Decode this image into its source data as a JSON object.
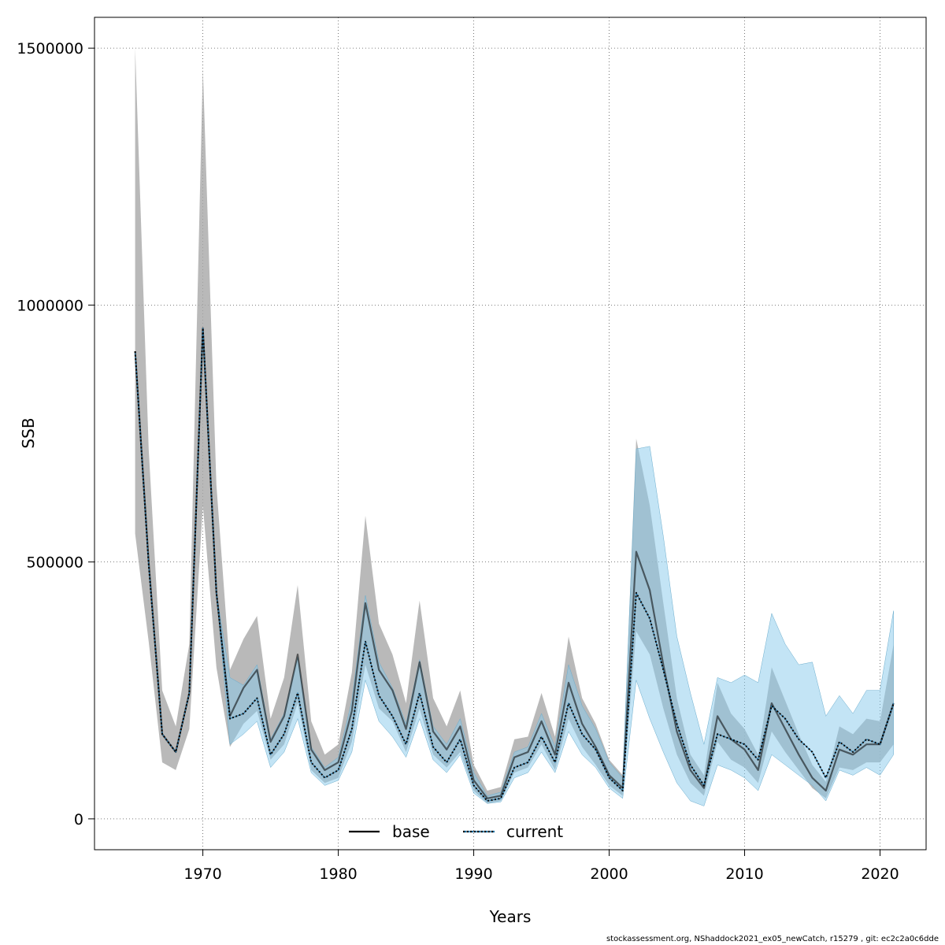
{
  "chart_data": {
    "type": "line",
    "title": "",
    "xlabel": "Years",
    "ylabel": "SSB",
    "xlim": [
      1962,
      2023.4
    ],
    "ylim": [
      -60000,
      1560000
    ],
    "x_ticks": [
      1970,
      1980,
      1990,
      2000,
      2010,
      2020
    ],
    "x_tick_labels": [
      "1970",
      "1980",
      "1990",
      "2000",
      "2010",
      "2020"
    ],
    "y_ticks": [
      0,
      500000,
      1000000,
      1500000
    ],
    "y_tick_labels": [
      "0",
      "500000",
      "1000000",
      "1500000"
    ],
    "grid": true,
    "legend": {
      "position": "bottom-center",
      "entries": [
        "base",
        "current"
      ]
    },
    "x": [
      1965,
      1966,
      1967,
      1968,
      1969,
      1970,
      1971,
      1972,
      1973,
      1974,
      1975,
      1976,
      1977,
      1978,
      1979,
      1980,
      1981,
      1982,
      1983,
      1984,
      1985,
      1986,
      1987,
      1988,
      1989,
      1990,
      1991,
      1992,
      1993,
      1994,
      1995,
      1996,
      1997,
      1998,
      1999,
      2000,
      2001,
      2002,
      2003,
      2004,
      2005,
      2006,
      2007,
      2008,
      2009,
      2010,
      2011,
      2012,
      2013,
      2014,
      2015,
      2016,
      2017,
      2018,
      2019,
      2020,
      2021
    ],
    "series": [
      {
        "name": "base",
        "line_style": "solid",
        "color": "#000000",
        "band_color": "#a8a8a8",
        "values": [
          910000,
          500000,
          165000,
          130000,
          245000,
          955000,
          440000,
          200000,
          255000,
          290000,
          150000,
          200000,
          320000,
          135000,
          95000,
          110000,
          210000,
          420000,
          290000,
          250000,
          175000,
          305000,
          170000,
          135000,
          180000,
          75000,
          40000,
          45000,
          120000,
          130000,
          190000,
          125000,
          265000,
          185000,
          140000,
          85000,
          60000,
          520000,
          445000,
          300000,
          170000,
          95000,
          60000,
          200000,
          155000,
          135000,
          95000,
          225000,
          175000,
          125000,
          80000,
          55000,
          135000,
          125000,
          145000,
          145000,
          225000
        ],
        "upper": [
          1500000,
          720000,
          250000,
          180000,
          340000,
          1460000,
          650000,
          290000,
          350000,
          395000,
          195000,
          275000,
          455000,
          190000,
          125000,
          145000,
          285000,
          590000,
          380000,
          320000,
          225000,
          425000,
          235000,
          180000,
          250000,
          105000,
          55000,
          62000,
          155000,
          160000,
          245000,
          160000,
          355000,
          235000,
          185000,
          115000,
          85000,
          740000,
          610000,
          420000,
          235000,
          125000,
          85000,
          265000,
          205000,
          175000,
          125000,
          295000,
          230000,
          165000,
          105000,
          72000,
          180000,
          165000,
          195000,
          190000,
          340000
        ],
        "lower": [
          555000,
          345000,
          110000,
          95000,
          175000,
          610000,
          295000,
          140000,
          185000,
          210000,
          115000,
          145000,
          225000,
          95000,
          70000,
          80000,
          150000,
          300000,
          215000,
          190000,
          130000,
          215000,
          125000,
          100000,
          130000,
          55000,
          30000,
          35000,
          90000,
          100000,
          145000,
          95000,
          195000,
          140000,
          105000,
          65000,
          45000,
          365000,
          320000,
          215000,
          125000,
          70000,
          45000,
          150000,
          115000,
          100000,
          70000,
          170000,
          130000,
          95000,
          60000,
          40000,
          100000,
          95000,
          110000,
          110000,
          145000
        ]
      },
      {
        "name": "current",
        "line_style": "dotted",
        "color": "#1a6fa3",
        "band_color": "#87c9ec",
        "values": [
          910000,
          495000,
          165000,
          130000,
          245000,
          955000,
          440000,
          195000,
          205000,
          235000,
          125000,
          165000,
          245000,
          110000,
          80000,
          95000,
          175000,
          345000,
          240000,
          200000,
          145000,
          245000,
          140000,
          110000,
          155000,
          65000,
          35000,
          40000,
          100000,
          110000,
          160000,
          110000,
          225000,
          165000,
          135000,
          80000,
          55000,
          440000,
          390000,
          290000,
          185000,
          105000,
          65000,
          165000,
          155000,
          145000,
          115000,
          220000,
          195000,
          155000,
          130000,
          80000,
          150000,
          130000,
          155000,
          145000,
          225000
        ],
        "upper": [
          910000,
          495000,
          165000,
          130000,
          245000,
          955000,
          440000,
          275000,
          260000,
          300000,
          155000,
          205000,
          315000,
          140000,
          100000,
          120000,
          230000,
          435000,
          305000,
          255000,
          185000,
          310000,
          180000,
          145000,
          195000,
          90000,
          45000,
          52000,
          130000,
          140000,
          205000,
          140000,
          300000,
          220000,
          175000,
          110000,
          80000,
          720000,
          725000,
          550000,
          355000,
          245000,
          145000,
          275000,
          265000,
          280000,
          265000,
          400000,
          340000,
          300000,
          305000,
          200000,
          240000,
          205000,
          250000,
          250000,
          405000
        ],
        "lower": [
          910000,
          495000,
          165000,
          130000,
          245000,
          955000,
          440000,
          145000,
          165000,
          190000,
          100000,
          130000,
          195000,
          90000,
          65000,
          75000,
          130000,
          270000,
          190000,
          160000,
          120000,
          195000,
          115000,
          90000,
          125000,
          50000,
          30000,
          33000,
          80000,
          90000,
          130000,
          90000,
          170000,
          125000,
          100000,
          60000,
          40000,
          270000,
          195000,
          130000,
          70000,
          35000,
          25000,
          105000,
          95000,
          80000,
          55000,
          125000,
          105000,
          85000,
          65000,
          35000,
          95000,
          85000,
          100000,
          85000,
          125000
        ]
      }
    ]
  },
  "footer": {
    "text": "stockassessment.org, NShaddock2021_ex05_newCatch, r15279 , git: ec2c2a0c6dde"
  }
}
